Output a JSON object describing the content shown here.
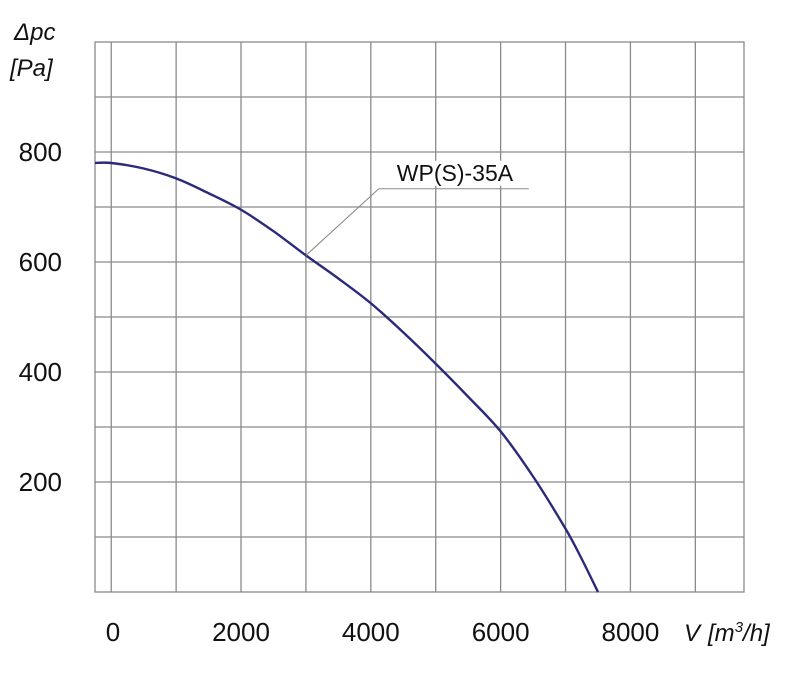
{
  "chart_data": {
    "type": "line",
    "title": "",
    "ylabel": {
      "symbol": "Δpc",
      "unit": "[Pa]"
    },
    "xlabel": {
      "symbol": "V",
      "unit_prefix": "[m",
      "unit_sup": "3",
      "unit_suffix": "/h]"
    },
    "xlim": [
      -250,
      9750
    ],
    "ylim": [
      0,
      1000
    ],
    "x_tick_labels": [
      "0",
      "2000",
      "4000",
      "6000",
      "8000"
    ],
    "x_tick_values": [
      0,
      2000,
      4000,
      6000,
      8000
    ],
    "y_tick_labels": [
      "200",
      "400",
      "600",
      "800"
    ],
    "y_tick_values": [
      200,
      400,
      600,
      800
    ],
    "x_grid": [
      0,
      1000,
      2000,
      3000,
      4000,
      5000,
      6000,
      7000,
      8000,
      9000
    ],
    "y_grid": [
      100,
      200,
      300,
      400,
      500,
      600,
      700,
      800,
      900
    ],
    "grid": true,
    "series": [
      {
        "name": "WP(S)-35A",
        "color": "#2b2a7a",
        "x": [
          -250,
          0,
          500,
          1000,
          1500,
          2000,
          2500,
          3000,
          3500,
          4000,
          4500,
          5000,
          5500,
          6000,
          6500,
          7000,
          7250,
          7500
        ],
        "y": [
          780,
          780,
          770,
          752,
          725,
          695,
          656,
          612,
          570,
          525,
          472,
          415,
          355,
          292,
          210,
          115,
          60,
          0
        ]
      }
    ],
    "annotations": [
      {
        "text": "WP(S)-35A",
        "target_series": "WP(S)-35A",
        "point": [
          3000,
          612
        ],
        "text_at": [
          4400,
          755
        ]
      }
    ]
  }
}
